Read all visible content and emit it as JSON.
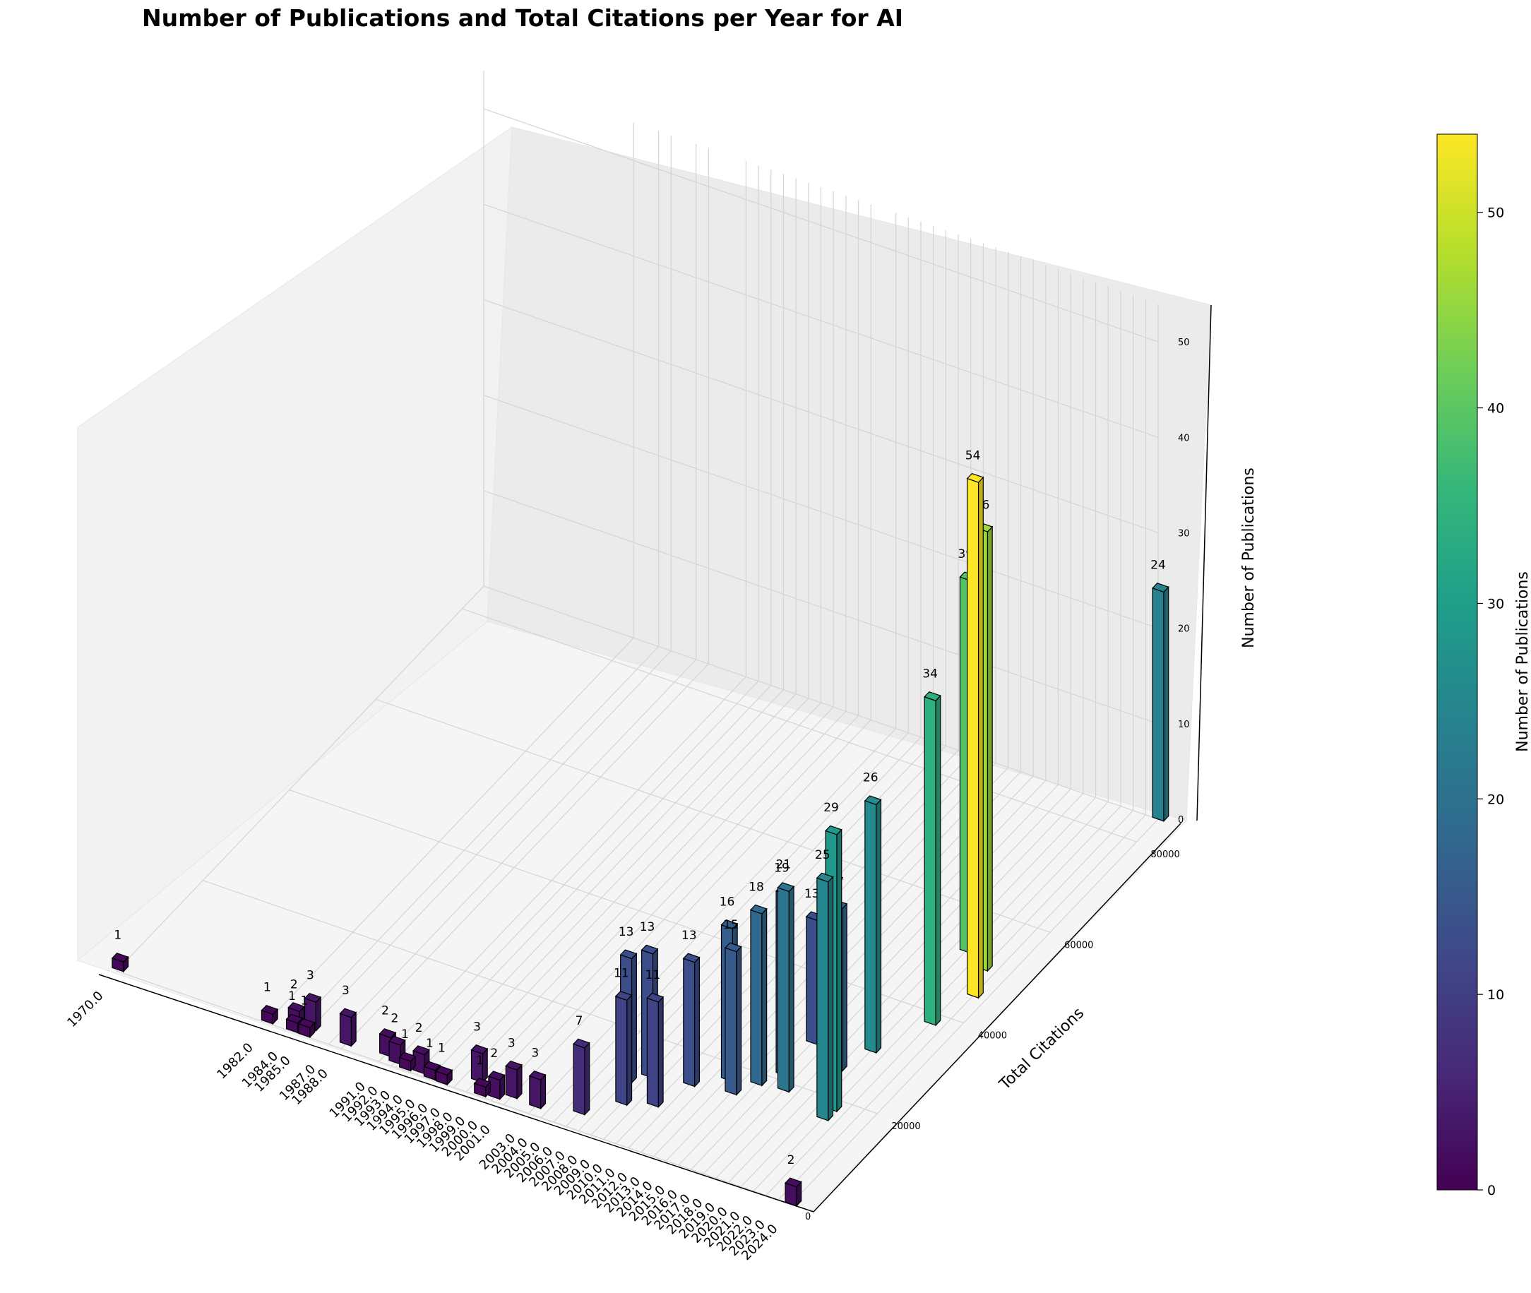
{
  "chart_data": {
    "type": "bar3d",
    "title": "Number of Publications and Total Citations per Year for AI",
    "xlabel": "",
    "ylabel": "Total Citations",
    "zlabel": "Number of Publications",
    "colorbar_label": "Number of Publications",
    "colormap": "viridis",
    "colormap_stops": [
      "#440154",
      "#482878",
      "#3e4989",
      "#31688e",
      "#26828e",
      "#1f9e89",
      "#35b779",
      "#6ece58",
      "#b5de2b",
      "#fde725"
    ],
    "colorbar_range": [
      0,
      54
    ],
    "colorbar_ticks": [
      "0",
      "10",
      "20",
      "30",
      "40",
      "50"
    ],
    "citation_ticks": [
      "0",
      "20000",
      "40000",
      "60000",
      "80000"
    ],
    "citation_range": [
      0,
      85000
    ],
    "publication_ticks": [
      "0",
      "10",
      "20",
      "30",
      "40",
      "50"
    ],
    "publication_range": [
      0,
      54
    ],
    "year_ticks": [
      "1970.0",
      "1982.0",
      "1984.0",
      "1985.0",
      "1987.0",
      "1988.0",
      "1991.0",
      "1992.0",
      "1993.0",
      "1994.0",
      "1995.0",
      "1996.0",
      "1997.0",
      "1998.0",
      "1999.0",
      "2000.0",
      "2001.0",
      "2003.0",
      "2004.0",
      "2005.0",
      "2006.0",
      "2007.0",
      "2008.0",
      "2009.0",
      "2010.0",
      "2011.0",
      "2012.0",
      "2013.0",
      "2014.0",
      "2015.0",
      "2016.0",
      "2017.0",
      "2018.0",
      "2019.0",
      "2020.0",
      "2021.0",
      "2022.0",
      "2023.0",
      "2024.0"
    ],
    "years": [
      "1970.0",
      "1982.0",
      "1984.0",
      "1985.0",
      "1987.0",
      "1988.0",
      "1991.0",
      "1992.0",
      "1993.0",
      "1994.0",
      "1995.0",
      "1996.0",
      "1997.0",
      "1998.0",
      "1999.0",
      "2000.0",
      "2001.0",
      "2003.0",
      "2004.0",
      "2005.0",
      "2006.0",
      "2007.0",
      "2008.0",
      "2009.0",
      "2010.0",
      "2011.0",
      "2012.0",
      "2013.0",
      "2014.0",
      "2015.0",
      "2016.0",
      "2017.0",
      "2018.0",
      "2019.0",
      "2020.0",
      "2021.0",
      "2022.0",
      "2023.0",
      "2024.0"
    ],
    "bars": [
      {
        "year": "1970.0",
        "publications": 1,
        "citations": 300
      },
      {
        "year": "1982.0",
        "publications": 1,
        "citations": 200
      },
      {
        "year": "1984.0",
        "publications": 2,
        "citations": 600
      },
      {
        "year": "1984.0",
        "publications": 1,
        "citations": 150
      },
      {
        "year": "1985.0",
        "publications": 3,
        "citations": 1500
      },
      {
        "year": "1985.0",
        "publications": 1,
        "citations": 100
      },
      {
        "year": "1988.0",
        "publications": 3,
        "citations": 1000
      },
      {
        "year": "1991.0",
        "publications": 2,
        "citations": 1500
      },
      {
        "year": "1992.0",
        "publications": 2,
        "citations": 800
      },
      {
        "year": "1993.0",
        "publications": 1,
        "citations": 300
      },
      {
        "year": "1994.0",
        "publications": 2,
        "citations": 600
      },
      {
        "year": "1995.0",
        "publications": 1,
        "citations": 200
      },
      {
        "year": "1996.0",
        "publications": 1,
        "citations": 100
      },
      {
        "year": "1998.0",
        "publications": 3,
        "citations": 2500
      },
      {
        "year": "1999.0",
        "publications": 1,
        "citations": 300
      },
      {
        "year": "2000.0",
        "publications": 2,
        "citations": 700
      },
      {
        "year": "2001.0",
        "publications": 3,
        "citations": 1800
      },
      {
        "year": "2003.0",
        "publications": 3,
        "citations": 1500
      },
      {
        "year": "2006.0",
        "publications": 7,
        "citations": 3000
      },
      {
        "year": "2007.0",
        "publications": 13,
        "citations": 11000
      },
      {
        "year": "2008.0",
        "publications": 13,
        "citations": 13000
      },
      {
        "year": "2008.0",
        "publications": 11,
        "citations": 7000
      },
      {
        "year": "2010.0",
        "publications": 11,
        "citations": 8500
      },
      {
        "year": "2011.0",
        "publications": 13,
        "citations": 14000
      },
      {
        "year": "2013.0",
        "publications": 16,
        "citations": 17000
      },
      {
        "year": "2014.0",
        "publications": 15,
        "citations": 15000
      },
      {
        "year": "2015.0",
        "publications": 18,
        "citations": 18000
      },
      {
        "year": "2016.0",
        "publications": 19,
        "citations": 21000
      },
      {
        "year": "2016.0",
        "publications": 13,
        "citations": 28000
      },
      {
        "year": "2017.0",
        "publications": 21,
        "citations": 18500
      },
      {
        "year": "2019.0",
        "publications": 17,
        "citations": 25000
      },
      {
        "year": "2020.0",
        "publications": 26,
        "citations": 30000
      },
      {
        "year": "2020.0",
        "publications": 39,
        "citations": 52000
      },
      {
        "year": "2021.0",
        "publications": 29,
        "citations": 18000
      },
      {
        "year": "2021.0",
        "publications": 25,
        "citations": 16000
      },
      {
        "year": "2022.0",
        "publications": 46,
        "citations": 50000
      },
      {
        "year": "2022.0",
        "publications": 34,
        "citations": 38000
      },
      {
        "year": "2023.0",
        "publications": 54,
        "citations": 45000
      },
      {
        "year": "2024.0",
        "publications": 24,
        "citations": 85000
      },
      {
        "year": "2024.0",
        "publications": 2,
        "citations": 0
      }
    ]
  }
}
